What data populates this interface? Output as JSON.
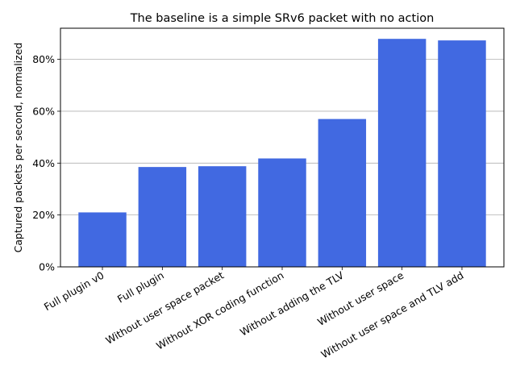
{
  "chart_data": {
    "type": "bar",
    "title": "The baseline is a simple SRv6 packet with no action",
    "xlabel": "",
    "ylabel": "Captured packets per second, normalized",
    "categories": [
      "Full plugin v0",
      "Full plugin",
      "Without user space packet",
      "Without XOR coding function",
      "Without adding the TLV",
      "Without user space",
      "Without user space and TLV add"
    ],
    "values": [
      0.21,
      0.385,
      0.388,
      0.418,
      0.57,
      0.879,
      0.873
    ],
    "ylim": [
      0,
      0.92
    ],
    "yticks": [
      0,
      0.2,
      0.4,
      0.6,
      0.8
    ],
    "ytick_labels": [
      "0%",
      "20%",
      "40%",
      "60%",
      "80%"
    ],
    "grid": "horizontal",
    "legend": "none",
    "bar_color": "#4169e1"
  }
}
